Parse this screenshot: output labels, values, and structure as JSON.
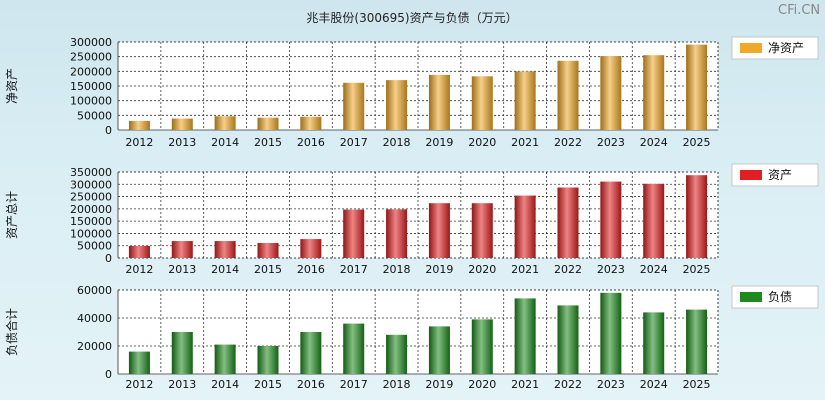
{
  "title": "兆丰股份(300695)资产与负债（万元）",
  "watermark": "CFi.CN",
  "chart_data": [
    {
      "type": "bar",
      "categories": [
        "2012",
        "2013",
        "2014",
        "2015",
        "2016",
        "2017",
        "2018",
        "2019",
        "2020",
        "2021",
        "2022",
        "2023",
        "2024",
        "2025"
      ],
      "series": [
        {
          "name": "净资产",
          "values": [
            31000,
            39000,
            47000,
            42000,
            45000,
            161000,
            170000,
            188000,
            183000,
            200000,
            236000,
            252000,
            255000,
            291000
          ]
        }
      ],
      "ylabel": "净资产",
      "ylim": [
        0,
        300000
      ],
      "yticks": [
        0,
        50000,
        100000,
        150000,
        200000,
        250000,
        300000
      ],
      "color": "#f0a828",
      "grid": true,
      "legend_position": "right"
    },
    {
      "type": "bar",
      "categories": [
        "2012",
        "2013",
        "2014",
        "2015",
        "2016",
        "2017",
        "2018",
        "2019",
        "2020",
        "2021",
        "2022",
        "2023",
        "2024",
        "2025"
      ],
      "series": [
        {
          "name": "资产",
          "values": [
            49000,
            69000,
            69000,
            61000,
            77000,
            197000,
            198000,
            223000,
            223000,
            254000,
            287000,
            311000,
            302000,
            337000
          ]
        }
      ],
      "ylabel": "资产总计",
      "ylim": [
        0,
        350000
      ],
      "yticks": [
        0,
        50000,
        100000,
        150000,
        200000,
        250000,
        300000,
        350000
      ],
      "color": "#e02020",
      "grid": true,
      "legend_position": "right"
    },
    {
      "type": "bar",
      "categories": [
        "2012",
        "2013",
        "2014",
        "2015",
        "2016",
        "2017",
        "2018",
        "2019",
        "2020",
        "2021",
        "2022",
        "2023",
        "2024",
        "2025"
      ],
      "series": [
        {
          "name": "负债",
          "values": [
            16000,
            30000,
            21000,
            20000,
            30000,
            36000,
            28000,
            34000,
            39000,
            54000,
            49000,
            58000,
            44000,
            46000
          ]
        }
      ],
      "ylabel": "负债合计",
      "ylim": [
        0,
        60000
      ],
      "yticks": [
        0,
        20000,
        40000,
        60000
      ],
      "color": "#1e8a1e",
      "grid": true,
      "legend_position": "right"
    }
  ]
}
